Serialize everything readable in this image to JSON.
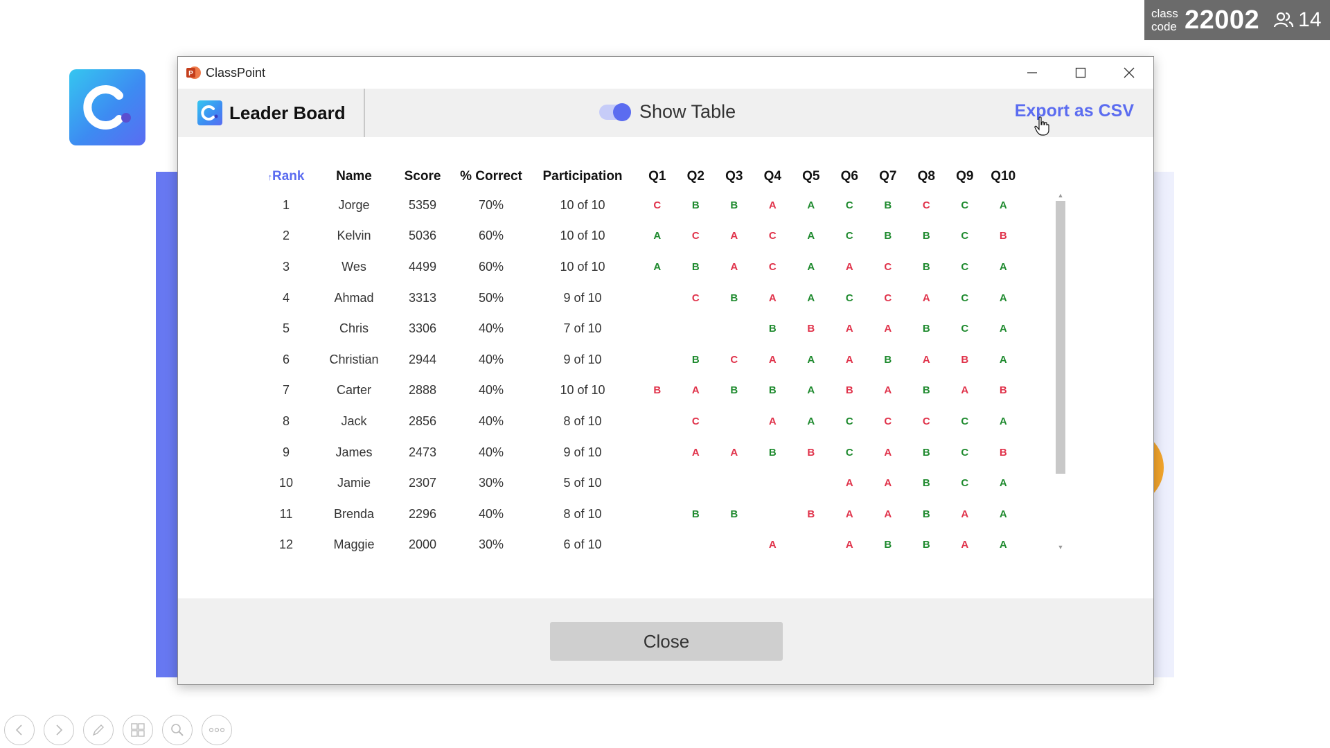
{
  "class_code": {
    "label_line1": "class",
    "label_line2": "code",
    "value": "22002",
    "participants": "14"
  },
  "window": {
    "title": "ClassPoint"
  },
  "header": {
    "title": "Leader Board",
    "toggle_label": "Show Table",
    "toggle_on": true,
    "export_label": "Export as CSV"
  },
  "table": {
    "sort_arrow": "↑",
    "columns": [
      "Rank",
      "Name",
      "Score",
      "% Correct",
      "Participation",
      "Q1",
      "Q2",
      "Q3",
      "Q4",
      "Q5",
      "Q6",
      "Q7",
      "Q8",
      "Q9",
      "Q10"
    ],
    "rows": [
      {
        "rank": "1",
        "name": "Jorge",
        "score": "5359",
        "correct": "70%",
        "participation": "10 of 10",
        "answers": [
          [
            "C",
            "bad"
          ],
          [
            "B",
            "ok"
          ],
          [
            "B",
            "ok"
          ],
          [
            "A",
            "bad"
          ],
          [
            "A",
            "ok"
          ],
          [
            "C",
            "ok"
          ],
          [
            "B",
            "ok"
          ],
          [
            "C",
            "bad"
          ],
          [
            "C",
            "ok"
          ],
          [
            "A",
            "ok"
          ]
        ]
      },
      {
        "rank": "2",
        "name": "Kelvin",
        "score": "5036",
        "correct": "60%",
        "participation": "10 of 10",
        "answers": [
          [
            "A",
            "ok"
          ],
          [
            "C",
            "bad"
          ],
          [
            "A",
            "bad"
          ],
          [
            "C",
            "bad"
          ],
          [
            "A",
            "ok"
          ],
          [
            "C",
            "ok"
          ],
          [
            "B",
            "ok"
          ],
          [
            "B",
            "ok"
          ],
          [
            "C",
            "ok"
          ],
          [
            "B",
            "bad"
          ]
        ]
      },
      {
        "rank": "3",
        "name": "Wes",
        "score": "4499",
        "correct": "60%",
        "participation": "10 of 10",
        "answers": [
          [
            "A",
            "ok"
          ],
          [
            "B",
            "ok"
          ],
          [
            "A",
            "bad"
          ],
          [
            "C",
            "bad"
          ],
          [
            "A",
            "ok"
          ],
          [
            "A",
            "bad"
          ],
          [
            "C",
            "bad"
          ],
          [
            "B",
            "ok"
          ],
          [
            "C",
            "ok"
          ],
          [
            "A",
            "ok"
          ]
        ]
      },
      {
        "rank": "4",
        "name": "Ahmad",
        "score": "3313",
        "correct": "50%",
        "participation": "9 of 10",
        "answers": [
          [
            "",
            ""
          ],
          [
            "C",
            "bad"
          ],
          [
            "B",
            "ok"
          ],
          [
            "A",
            "bad"
          ],
          [
            "A",
            "ok"
          ],
          [
            "C",
            "ok"
          ],
          [
            "C",
            "bad"
          ],
          [
            "A",
            "bad"
          ],
          [
            "C",
            "ok"
          ],
          [
            "A",
            "ok"
          ]
        ]
      },
      {
        "rank": "5",
        "name": "Chris",
        "score": "3306",
        "correct": "40%",
        "participation": "7 of 10",
        "answers": [
          [
            "",
            ""
          ],
          [
            "",
            ""
          ],
          [
            "",
            ""
          ],
          [
            "B",
            "ok"
          ],
          [
            "B",
            "bad"
          ],
          [
            "A",
            "bad"
          ],
          [
            "A",
            "bad"
          ],
          [
            "B",
            "ok"
          ],
          [
            "C",
            "ok"
          ],
          [
            "A",
            "ok"
          ]
        ]
      },
      {
        "rank": "6",
        "name": "Christian",
        "score": "2944",
        "correct": "40%",
        "participation": "9 of 10",
        "answers": [
          [
            "",
            ""
          ],
          [
            "B",
            "ok"
          ],
          [
            "C",
            "bad"
          ],
          [
            "A",
            "bad"
          ],
          [
            "A",
            "ok"
          ],
          [
            "A",
            "bad"
          ],
          [
            "B",
            "ok"
          ],
          [
            "A",
            "bad"
          ],
          [
            "B",
            "bad"
          ],
          [
            "A",
            "ok"
          ]
        ]
      },
      {
        "rank": "7",
        "name": "Carter",
        "score": "2888",
        "correct": "40%",
        "participation": "10 of 10",
        "answers": [
          [
            "B",
            "bad"
          ],
          [
            "A",
            "bad"
          ],
          [
            "B",
            "ok"
          ],
          [
            "B",
            "ok"
          ],
          [
            "A",
            "ok"
          ],
          [
            "B",
            "bad"
          ],
          [
            "A",
            "bad"
          ],
          [
            "B",
            "ok"
          ],
          [
            "A",
            "bad"
          ],
          [
            "B",
            "bad"
          ]
        ]
      },
      {
        "rank": "8",
        "name": "Jack",
        "score": "2856",
        "correct": "40%",
        "participation": "8 of 10",
        "answers": [
          [
            "",
            ""
          ],
          [
            "C",
            "bad"
          ],
          [
            "",
            ""
          ],
          [
            "A",
            "bad"
          ],
          [
            "A",
            "ok"
          ],
          [
            "C",
            "ok"
          ],
          [
            "C",
            "bad"
          ],
          [
            "C",
            "bad"
          ],
          [
            "C",
            "ok"
          ],
          [
            "A",
            "ok"
          ]
        ]
      },
      {
        "rank": "9",
        "name": "James",
        "score": "2473",
        "correct": "40%",
        "participation": "9 of 10",
        "answers": [
          [
            "",
            ""
          ],
          [
            "A",
            "bad"
          ],
          [
            "A",
            "bad"
          ],
          [
            "B",
            "ok"
          ],
          [
            "B",
            "bad"
          ],
          [
            "C",
            "ok"
          ],
          [
            "A",
            "bad"
          ],
          [
            "B",
            "ok"
          ],
          [
            "C",
            "ok"
          ],
          [
            "B",
            "bad"
          ]
        ]
      },
      {
        "rank": "10",
        "name": "Jamie",
        "score": "2307",
        "correct": "30%",
        "participation": "5 of 10",
        "answers": [
          [
            "",
            ""
          ],
          [
            "",
            ""
          ],
          [
            "",
            ""
          ],
          [
            "",
            ""
          ],
          [
            "",
            ""
          ],
          [
            "A",
            "bad"
          ],
          [
            "A",
            "bad"
          ],
          [
            "B",
            "ok"
          ],
          [
            "C",
            "ok"
          ],
          [
            "A",
            "ok"
          ]
        ]
      },
      {
        "rank": "11",
        "name": "Brenda",
        "score": "2296",
        "correct": "40%",
        "participation": "8 of 10",
        "answers": [
          [
            "",
            ""
          ],
          [
            "B",
            "ok"
          ],
          [
            "B",
            "ok"
          ],
          [
            "",
            ""
          ],
          [
            "B",
            "bad"
          ],
          [
            "A",
            "bad"
          ],
          [
            "A",
            "bad"
          ],
          [
            "B",
            "ok"
          ],
          [
            "A",
            "bad"
          ],
          [
            "A",
            "ok"
          ]
        ]
      },
      {
        "rank": "12",
        "name": "Maggie",
        "score": "2000",
        "correct": "30%",
        "participation": "6 of 10",
        "answers": [
          [
            "",
            ""
          ],
          [
            "",
            ""
          ],
          [
            "",
            ""
          ],
          [
            "A",
            "bad"
          ],
          [
            "",
            ""
          ],
          [
            "A",
            "bad"
          ],
          [
            "B",
            "ok"
          ],
          [
            "B",
            "ok"
          ],
          [
            "A",
            "bad"
          ],
          [
            "A",
            "ok"
          ]
        ]
      }
    ]
  },
  "footer": {
    "close_label": "Close"
  },
  "colors": {
    "accent": "#5b6cf0",
    "correct": "#1e8a2e",
    "incorrect": "#e0324a"
  },
  "toolbar_icons": [
    "previous-icon",
    "next-icon",
    "pen-icon",
    "slides-grid-icon",
    "zoom-icon",
    "more-icon"
  ]
}
